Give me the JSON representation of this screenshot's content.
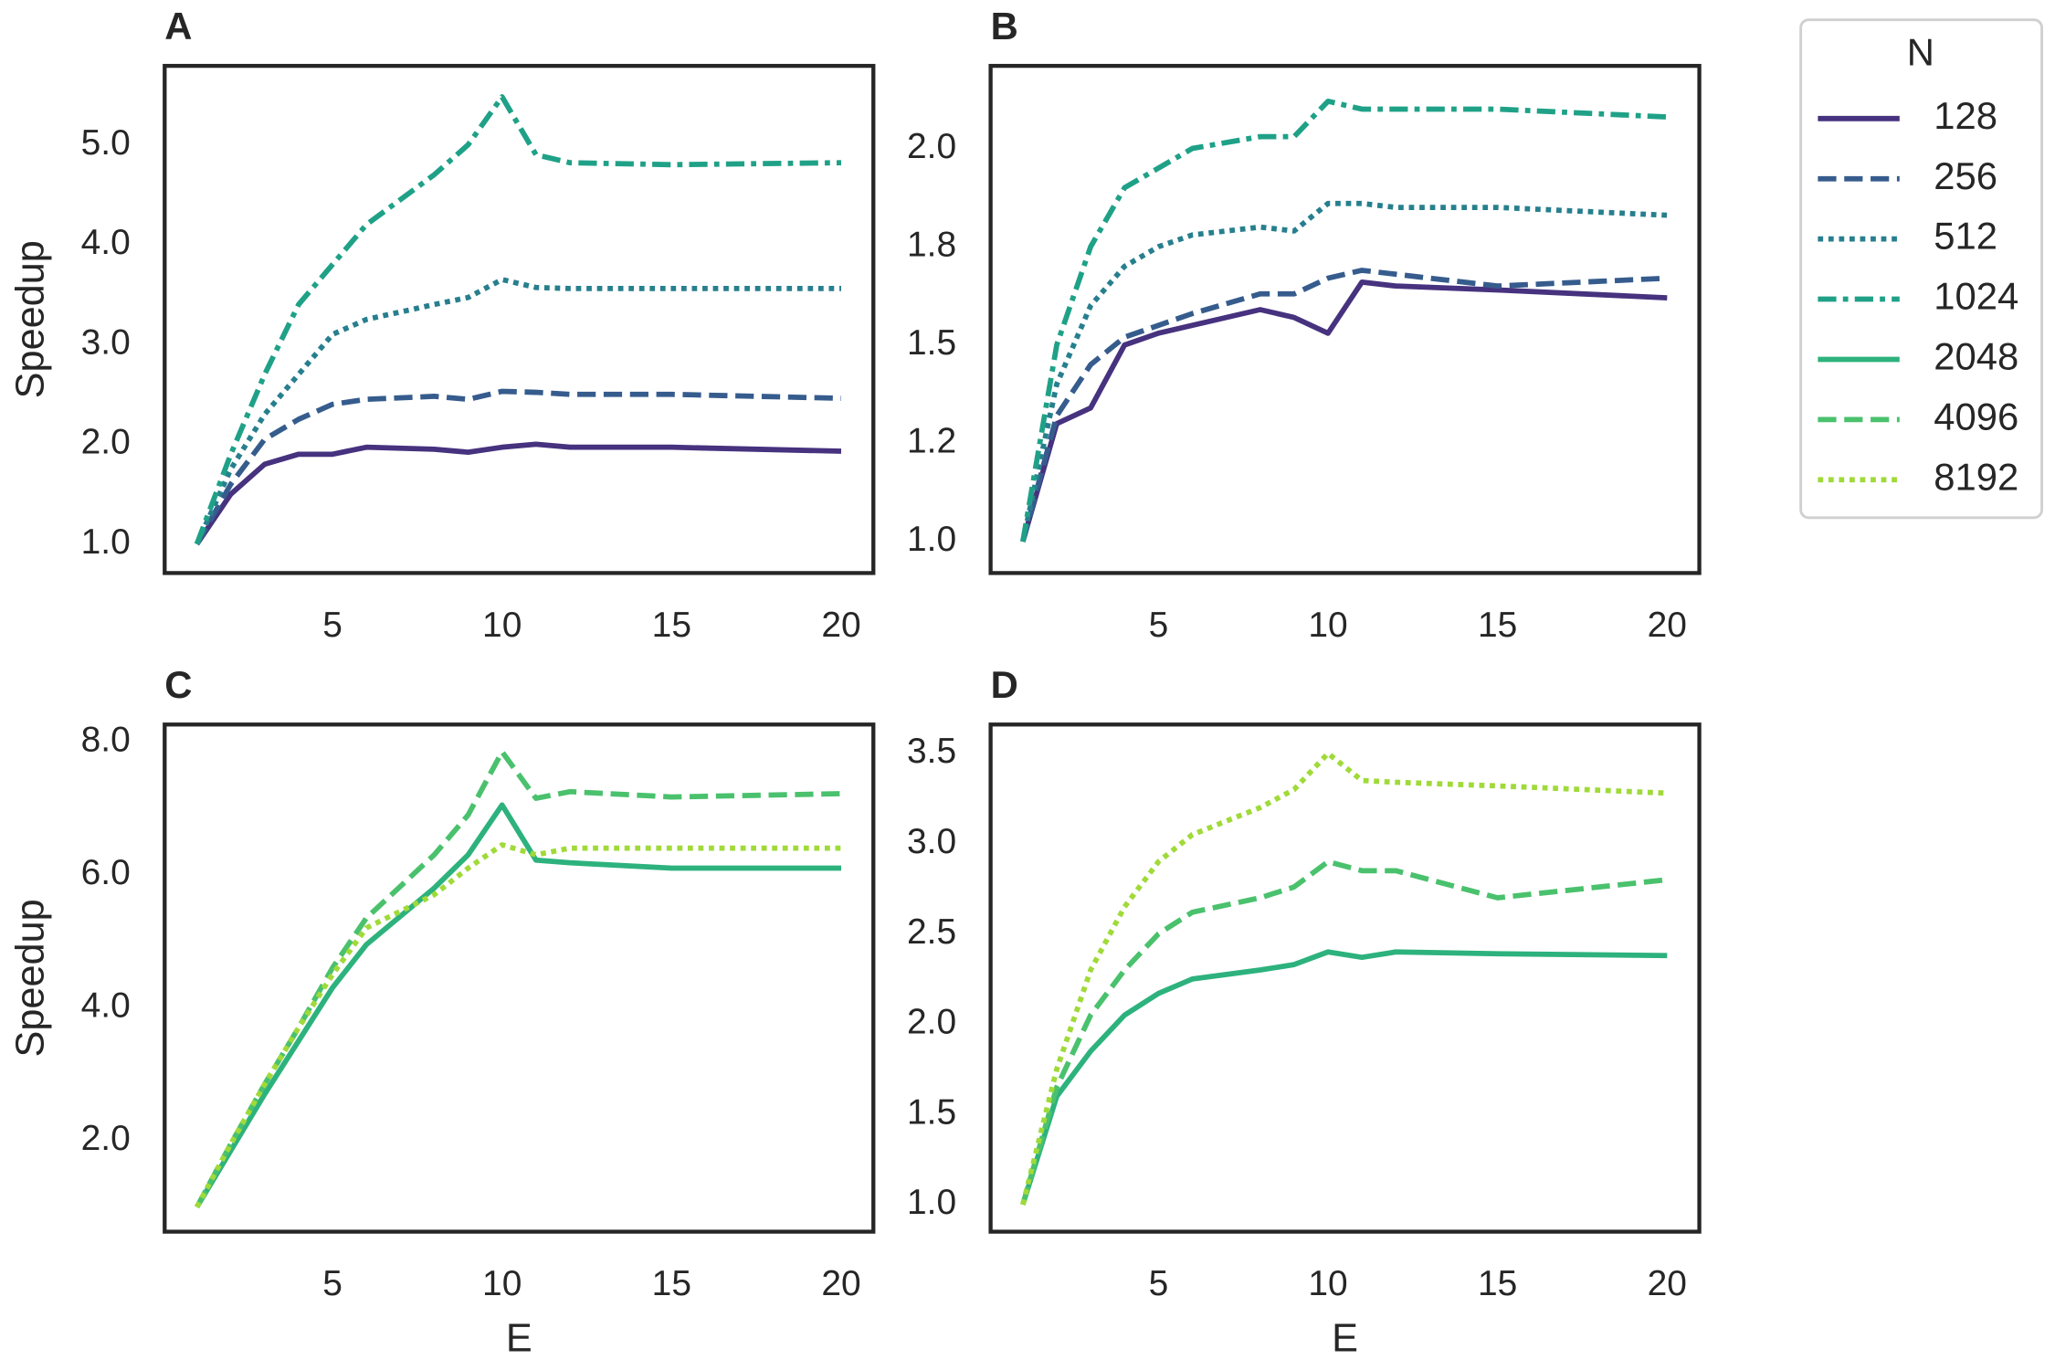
{
  "chart_data": [
    {
      "type": "line",
      "title": "A",
      "ylabel": "Speedup",
      "legend_title": "N",
      "legend": "outside right",
      "xlim": [
        0.05,
        20.95
      ],
      "xticks": [
        5,
        10,
        15,
        20
      ],
      "ylim": [
        0.71,
        5.79
      ],
      "yticks": [
        {
          "value": 1,
          "label": "1.0"
        },
        {
          "value": 2,
          "label": "2.0"
        },
        {
          "value": 3,
          "label": "3.0"
        },
        {
          "value": 4,
          "label": "4.0"
        },
        {
          "value": 5,
          "label": "5.0"
        }
      ],
      "x": [
        1,
        2,
        3,
        4,
        5,
        6,
        8,
        9,
        10,
        11,
        12,
        15,
        20
      ],
      "series": [
        {
          "name": "128",
          "color": "#46327e",
          "linestyle": "solid",
          "values": [
            1.0,
            1.5,
            1.8,
            1.9,
            1.9,
            1.97,
            1.95,
            1.92,
            1.97,
            2.0,
            1.97,
            1.97,
            1.93
          ]
        },
        {
          "name": "256",
          "color": "#365c8d",
          "linestyle": "dashed",
          "values": [
            1.0,
            1.6,
            2.05,
            2.25,
            2.4,
            2.45,
            2.48,
            2.45,
            2.53,
            2.52,
            2.5,
            2.5,
            2.46
          ]
        },
        {
          "name": "512",
          "color": "#277f8e",
          "linestyle": "dotted",
          "values": [
            1.0,
            1.75,
            2.3,
            2.7,
            3.1,
            3.25,
            3.4,
            3.47,
            3.65,
            3.57,
            3.56,
            3.56,
            3.56
          ]
        },
        {
          "name": "1024",
          "color": "#1fa187",
          "linestyle": "dashdot",
          "values": [
            1.0,
            1.9,
            2.7,
            3.4,
            3.8,
            4.2,
            4.7,
            5.0,
            5.48,
            4.9,
            4.82,
            4.8,
            4.82
          ]
        }
      ]
    },
    {
      "type": "line",
      "title": "B",
      "xlim": [
        0.05,
        20.95
      ],
      "xticks": [
        5,
        10,
        15,
        20
      ],
      "ylim": [
        0.92,
        2.21
      ],
      "yticks": [
        {
          "value": 1,
          "label": "1.0"
        },
        {
          "value": 1.25,
          "label": "1.2"
        },
        {
          "value": 1.5,
          "label": "1.5"
        },
        {
          "value": 1.75,
          "label": "1.8"
        },
        {
          "value": 2,
          "label": "2.0"
        }
      ],
      "x": [
        1,
        2,
        3,
        4,
        5,
        6,
        8,
        9,
        10,
        11,
        12,
        15,
        20
      ],
      "series": [
        {
          "name": "128",
          "color": "#46327e",
          "linestyle": "solid",
          "values": [
            1.0,
            1.3,
            1.34,
            1.5,
            1.53,
            1.55,
            1.59,
            1.57,
            1.53,
            1.66,
            1.65,
            1.64,
            1.62
          ]
        },
        {
          "name": "256",
          "color": "#365c8d",
          "linestyle": "dashed",
          "values": [
            1.0,
            1.32,
            1.45,
            1.52,
            1.55,
            1.58,
            1.63,
            1.63,
            1.67,
            1.69,
            1.68,
            1.65,
            1.67
          ]
        },
        {
          "name": "512",
          "color": "#277f8e",
          "linestyle": "dotted",
          "values": [
            1.0,
            1.4,
            1.6,
            1.7,
            1.75,
            1.78,
            1.8,
            1.79,
            1.86,
            1.86,
            1.85,
            1.85,
            1.83
          ]
        },
        {
          "name": "1024",
          "color": "#1fa187",
          "linestyle": "dashdot",
          "values": [
            1.0,
            1.5,
            1.75,
            1.9,
            1.95,
            2.0,
            2.03,
            2.03,
            2.12,
            2.1,
            2.1,
            2.1,
            2.08
          ]
        }
      ]
    },
    {
      "type": "line",
      "title": "C",
      "ylabel": "Speedup",
      "xlabel": "E",
      "xlim": [
        0.05,
        20.95
      ],
      "xticks": [
        5,
        10,
        15,
        20
      ],
      "ylim": [
        0.63,
        8.26
      ],
      "yticks": [
        {
          "value": 2,
          "label": "2.0"
        },
        {
          "value": 4,
          "label": "4.0"
        },
        {
          "value": 6,
          "label": "6.0"
        },
        {
          "value": 8,
          "label": "8.0"
        }
      ],
      "x": [
        1,
        2,
        3,
        4,
        5,
        6,
        8,
        9,
        10,
        11,
        12,
        15,
        20
      ],
      "series": [
        {
          "name": "2048",
          "color": "#2db27d",
          "linestyle": "solid",
          "values": [
            1.0,
            1.85,
            2.7,
            3.5,
            4.3,
            4.95,
            5.8,
            6.3,
            7.05,
            6.22,
            6.18,
            6.1,
            6.1
          ]
        },
        {
          "name": "4096",
          "color": "#4ac16d",
          "linestyle": "dashed",
          "values": [
            1.0,
            1.95,
            2.85,
            3.7,
            4.6,
            5.35,
            6.3,
            6.9,
            7.85,
            7.15,
            7.25,
            7.17,
            7.22
          ]
        },
        {
          "name": "8192",
          "color": "#a0da39",
          "linestyle": "dotted",
          "values": [
            1.0,
            1.95,
            2.85,
            3.7,
            4.5,
            5.2,
            5.7,
            6.1,
            6.45,
            6.3,
            6.4,
            6.4,
            6.4
          ]
        }
      ]
    },
    {
      "type": "line",
      "title": "D",
      "xlabel": "E",
      "xlim": [
        0.05,
        20.95
      ],
      "xticks": [
        5,
        10,
        15,
        20
      ],
      "ylim": [
        0.85,
        3.66
      ],
      "yticks": [
        {
          "value": 1,
          "label": "1.0"
        },
        {
          "value": 1.5,
          "label": "1.5"
        },
        {
          "value": 2,
          "label": "2.0"
        },
        {
          "value": 2.5,
          "label": "2.5"
        },
        {
          "value": 3,
          "label": "3.0"
        },
        {
          "value": 3.5,
          "label": "3.5"
        }
      ],
      "x": [
        1,
        2,
        3,
        4,
        5,
        6,
        8,
        9,
        10,
        11,
        12,
        15,
        20
      ],
      "series": [
        {
          "name": "2048",
          "color": "#2db27d",
          "linestyle": "solid",
          "values": [
            1.0,
            1.6,
            1.85,
            2.05,
            2.17,
            2.25,
            2.3,
            2.33,
            2.4,
            2.37,
            2.4,
            2.39,
            2.38
          ]
        },
        {
          "name": "4096",
          "color": "#4ac16d",
          "linestyle": "dashed",
          "values": [
            1.0,
            1.65,
            2.05,
            2.3,
            2.5,
            2.62,
            2.7,
            2.76,
            2.9,
            2.85,
            2.85,
            2.7,
            2.8
          ]
        },
        {
          "name": "8192",
          "color": "#a0da39",
          "linestyle": "dotted",
          "values": [
            1.0,
            1.75,
            2.3,
            2.65,
            2.9,
            3.05,
            3.2,
            3.3,
            3.5,
            3.35,
            3.34,
            3.32,
            3.28
          ]
        }
      ]
    }
  ]
}
